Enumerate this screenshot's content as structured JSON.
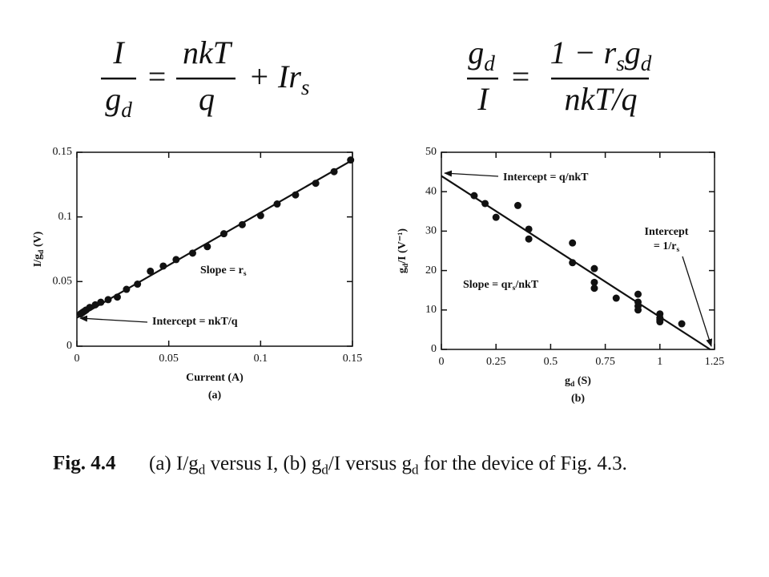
{
  "equations": [
    {
      "lhs": {
        "num": [
          "I"
        ],
        "den": [
          "g",
          "d"
        ]
      },
      "eq": "=",
      "rhs": {
        "num": [
          "nkT"
        ],
        "den": [
          "q"
        ]
      },
      "tail": [
        "+ Ir",
        "s"
      ]
    },
    {
      "lhs": {
        "num": [
          "g",
          "d"
        ],
        "den": [
          "I"
        ]
      },
      "eq": "=",
      "rhs": {
        "num": [
          "1 − r",
          "s",
          "g",
          "d"
        ],
        "den": [
          "nkT/q"
        ]
      }
    }
  ],
  "chart_data": [
    {
      "type": "scatter",
      "panel": "(a)",
      "xlabel": [
        "Current (A)"
      ],
      "ylabel": [
        "I/g",
        "d",
        " (V)"
      ],
      "x": [
        0.002,
        0.003,
        0.004,
        0.005,
        0.007,
        0.01,
        0.013,
        0.017,
        0.022,
        0.027,
        0.033,
        0.04,
        0.047,
        0.054,
        0.063,
        0.071,
        0.08,
        0.09,
        0.1,
        0.109,
        0.119,
        0.13,
        0.14,
        0.149
      ],
      "values": [
        0.025,
        0.026,
        0.027,
        0.028,
        0.03,
        0.032,
        0.034,
        0.036,
        0.038,
        0.044,
        0.048,
        0.058,
        0.062,
        0.067,
        0.072,
        0.077,
        0.087,
        0.094,
        0.101,
        0.11,
        0.117,
        0.126,
        0.135,
        0.144
      ],
      "color": "#111111",
      "fit": {
        "x": [
          0,
          0.15
        ],
        "values": [
          0.022,
          0.144
        ]
      },
      "xlim": [
        0,
        0.15
      ],
      "ylim": [
        0,
        0.15
      ],
      "xticks": [
        0,
        0.05,
        0.1,
        0.15
      ],
      "yticks": [
        0,
        0.05,
        0.1,
        0.15
      ],
      "annotations": [
        {
          "lines": [
            [
              "Slope = r",
              "s"
            ]
          ]
        },
        {
          "lines": [
            [
              "Intercept = nkT/q"
            ]
          ]
        }
      ]
    },
    {
      "type": "scatter",
      "panel": "(b)",
      "xlabel": [
        "g",
        "d",
        " (S)"
      ],
      "ylabel": [
        "g",
        "d",
        "/I (V⁻¹)"
      ],
      "x": [
        0.15,
        0.2,
        0.25,
        0.35,
        0.4,
        0.4,
        0.6,
        0.6,
        0.7,
        0.7,
        0.7,
        0.8,
        0.9,
        0.9,
        0.9,
        0.9,
        1,
        1,
        1,
        1,
        1.1
      ],
      "values": [
        39,
        37,
        33.5,
        36.5,
        30.5,
        28,
        27,
        22,
        20.5,
        17,
        15.5,
        13,
        14,
        12,
        11,
        10,
        9,
        8,
        7.5,
        7,
        6.5
      ],
      "color": "#111111",
      "fit": {
        "x": [
          0,
          1.23
        ],
        "values": [
          44,
          0
        ]
      },
      "xlim": [
        0,
        1.25
      ],
      "ylim": [
        0,
        50
      ],
      "xticks": [
        0,
        0.25,
        0.5,
        0.75,
        1,
        1.25
      ],
      "yticks": [
        0,
        10,
        20,
        30,
        40,
        50
      ],
      "annotations": [
        {
          "lines": [
            [
              "Intercept = q/nkT"
            ]
          ]
        },
        {
          "lines": [
            [
              "Slope = qr",
              "s",
              "/nkT"
            ]
          ]
        },
        {
          "lines": [
            [
              "Intercept"
            ],
            [
              "= 1/r",
              "s"
            ]
          ]
        }
      ]
    }
  ],
  "caption": {
    "label": "Fig. 4.4",
    "text": [
      "(a) I/g",
      "d",
      " versus I, (b) g",
      "d",
      "/I versus g",
      "d",
      " for the device of Fig. 4.3."
    ]
  }
}
